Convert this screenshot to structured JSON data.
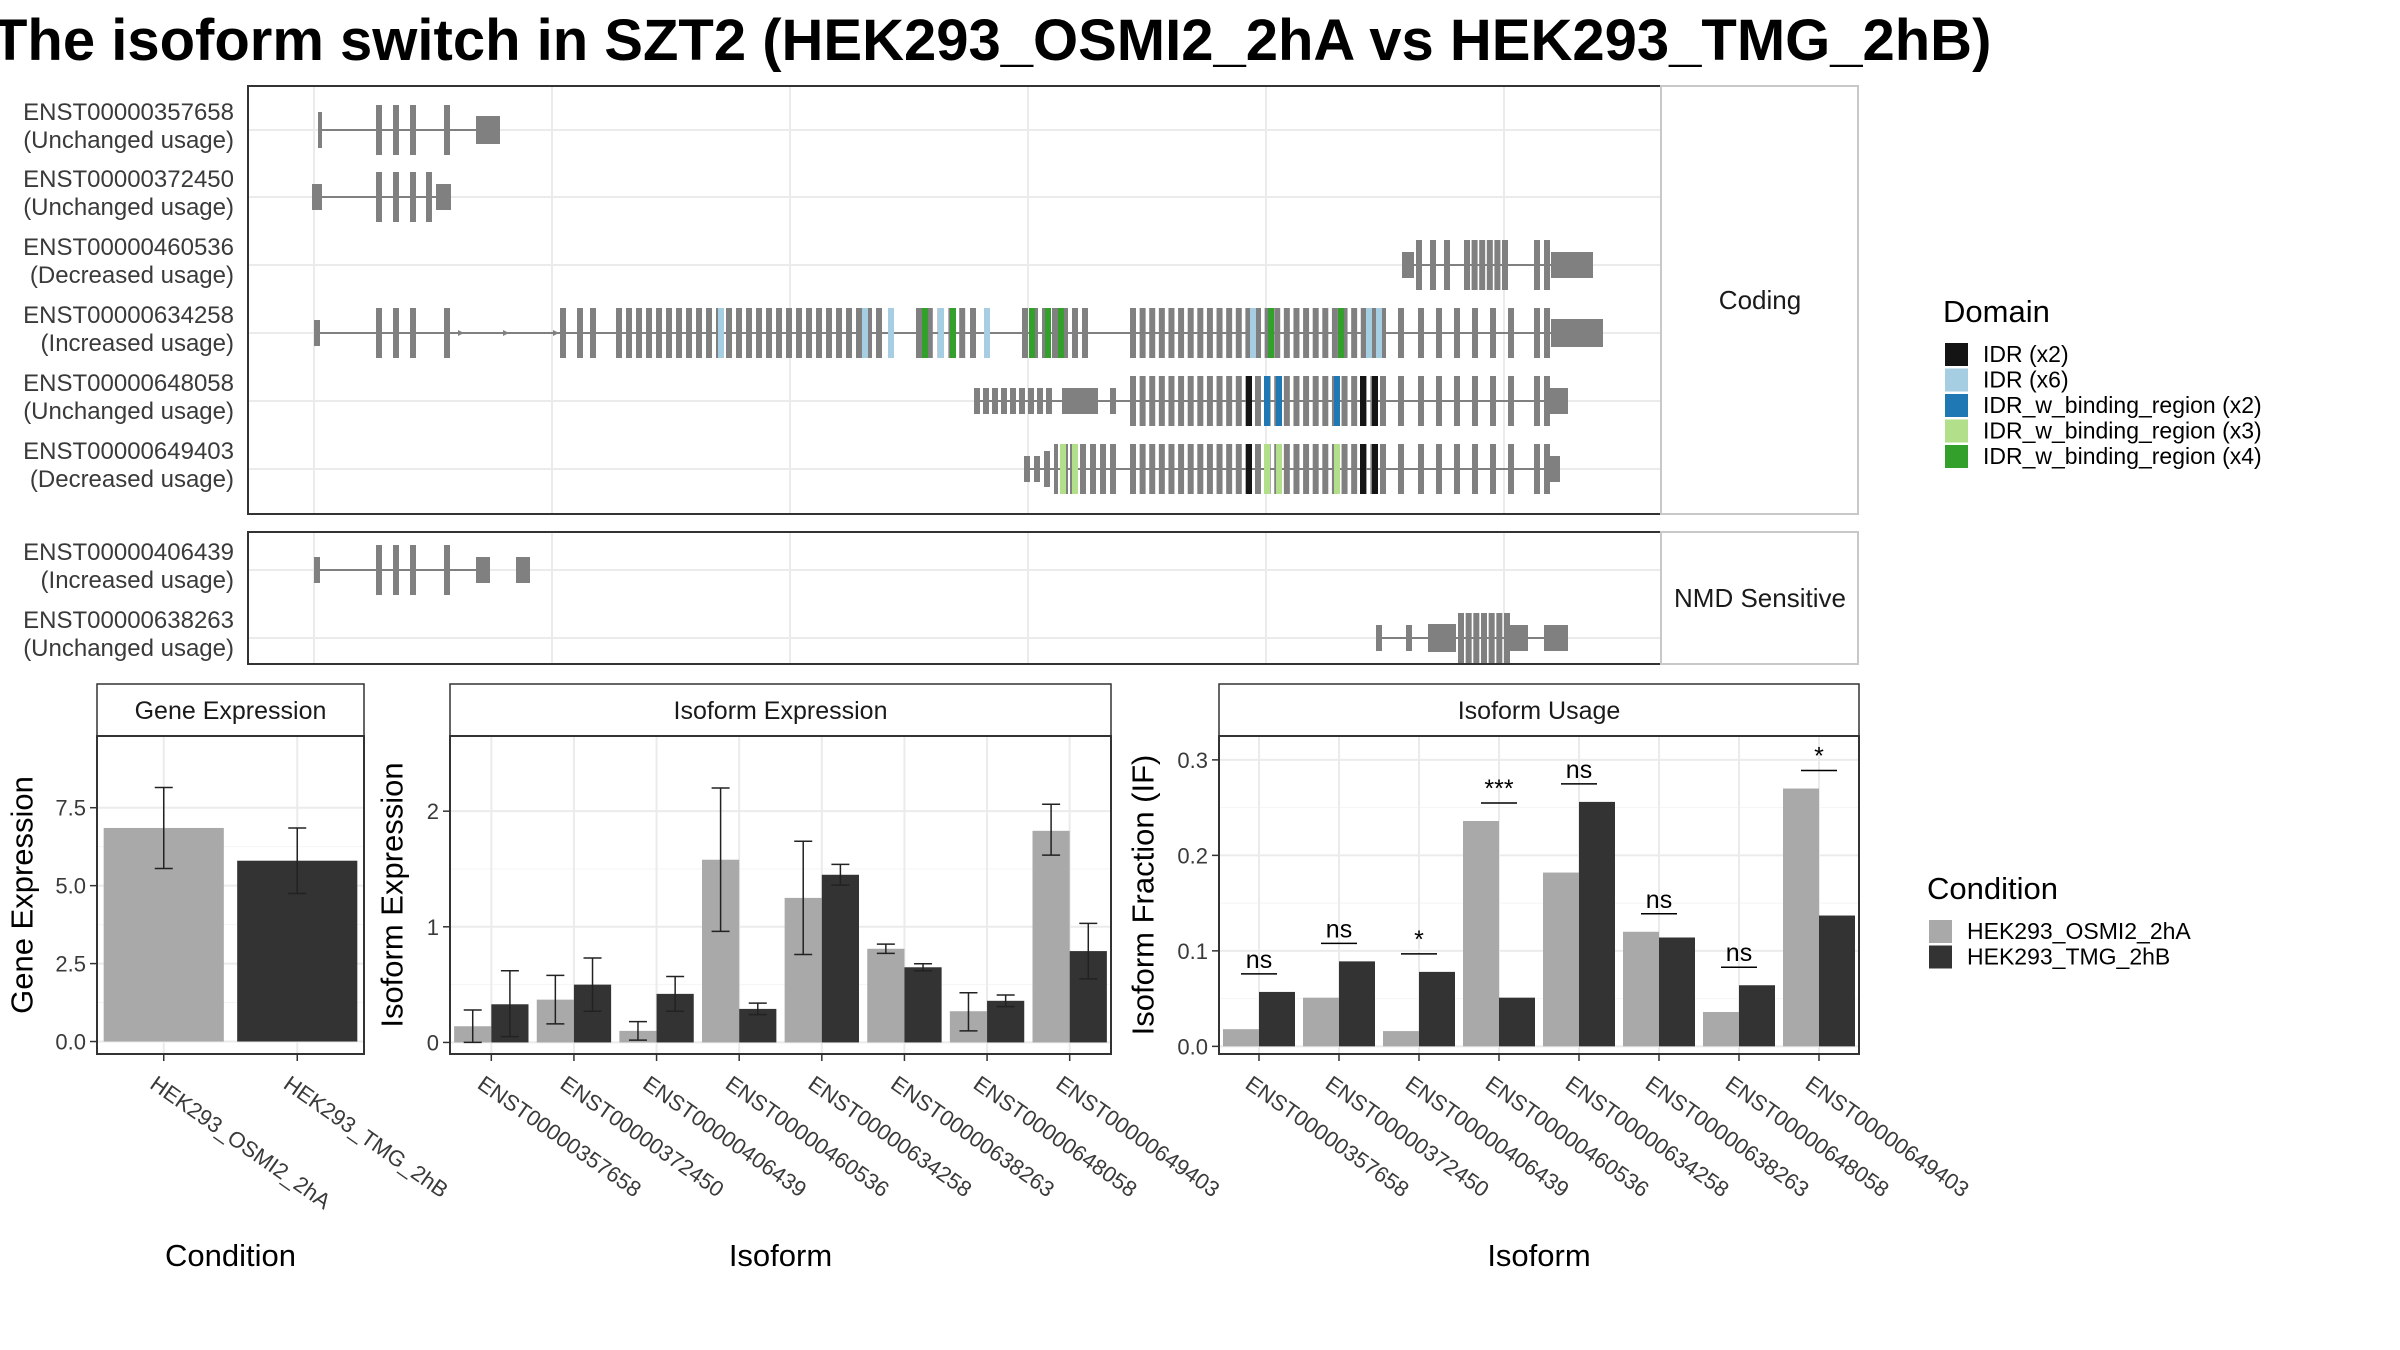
{
  "title": "The isoform switch in SZT2 (HEK293_OSMI2_2hA vs HEK293_TMG_2hB)",
  "colors": {
    "condition_a": "#a9a9a9",
    "condition_b": "#333333",
    "exon": "#808080",
    "IDR (x2)": "#141414",
    "IDR (x6)": "#a6cee3",
    "IDR_w_binding_region (x2)": "#1f78b4",
    "IDR_w_binding_region (x3)": "#b2df8a",
    "IDR_w_binding_region (x4)": "#33a02c"
  },
  "isoform_panel": {
    "groups": [
      {
        "label": "Coding",
        "isoforms": [
          {
            "id": "ENST00000357658",
            "usage": "(Unchanged usage)",
            "model": "early_long"
          },
          {
            "id": "ENST00000372450",
            "usage": "(Unchanged usage)",
            "model": "early_short"
          },
          {
            "id": "ENST00000460536",
            "usage": "(Decreased usage)",
            "model": "tail"
          },
          {
            "id": "ENST00000634258",
            "usage": "(Increased usage)",
            "model": "full"
          },
          {
            "id": "ENST00000648058",
            "usage": "(Unchanged usage)",
            "model": "mid"
          },
          {
            "id": "ENST00000649403",
            "usage": "(Decreased usage)",
            "model": "mid_short"
          }
        ]
      },
      {
        "label": "NMD Sensitive",
        "isoforms": [
          {
            "id": "ENST00000406439",
            "usage": "(Increased usage)",
            "model": "early_nmd"
          },
          {
            "id": "ENST00000638263",
            "usage": "(Unchanged usage)",
            "model": "tail_nmd"
          }
        ]
      }
    ],
    "domain_legend": {
      "title": "Domain",
      "items": [
        "IDR (x2)",
        "IDR (x6)",
        "IDR_w_binding_region (x2)",
        "IDR_w_binding_region (x3)",
        "IDR_w_binding_region (x4)"
      ]
    }
  },
  "chart_data": [
    {
      "type": "bar",
      "panel": "Gene Expression",
      "xlabel": "Condition",
      "ylabel": "Gene Expression",
      "categories": [
        "HEK293_OSMI2_2hA",
        "HEK293_TMG_2hB"
      ],
      "values": [
        6.85,
        5.8
      ],
      "errors": [
        [
          5.55,
          8.15
        ],
        [
          4.75,
          6.85
        ]
      ],
      "ylim": [
        -0.4,
        9.8
      ],
      "yticks": [
        0.0,
        2.5,
        5.0,
        7.5
      ],
      "grid": true
    },
    {
      "type": "bar",
      "panel": "Isoform Expression",
      "xlabel": "Isoform",
      "ylabel": "Isoform Expression",
      "categories": [
        "ENST00000357658",
        "ENST00000372450",
        "ENST00000406439",
        "ENST00000460536",
        "ENST00000634258",
        "ENST00000638263",
        "ENST00000648058",
        "ENST00000649403"
      ],
      "series": [
        {
          "name": "HEK293_OSMI2_2hA",
          "values": [
            0.14,
            0.37,
            0.1,
            1.58,
            1.25,
            0.81,
            0.27,
            1.83
          ],
          "errors": [
            [
              0.0,
              0.28
            ],
            [
              0.16,
              0.58
            ],
            [
              0.02,
              0.18
            ],
            [
              0.96,
              2.2
            ],
            [
              0.76,
              1.74
            ],
            [
              0.77,
              0.85
            ],
            [
              0.1,
              0.43
            ],
            [
              1.62,
              2.06
            ]
          ]
        },
        {
          "name": "HEK293_TMG_2hB",
          "values": [
            0.33,
            0.5,
            0.42,
            0.29,
            1.45,
            0.65,
            0.36,
            0.79
          ],
          "errors": [
            [
              0.05,
              0.62
            ],
            [
              0.27,
              0.73
            ],
            [
              0.27,
              0.57
            ],
            [
              0.24,
              0.34
            ],
            [
              1.36,
              1.54
            ],
            [
              0.62,
              0.68
            ],
            [
              0.31,
              0.41
            ],
            [
              0.55,
              1.03
            ]
          ]
        }
      ],
      "ylim": [
        -0.1,
        2.65
      ],
      "yticks": [
        0,
        1,
        2
      ],
      "grid": true
    },
    {
      "type": "bar",
      "panel": "Isoform Usage",
      "xlabel": "Isoform",
      "ylabel": "Isoform Fraction (IF)",
      "categories": [
        "ENST00000357658",
        "ENST00000372450",
        "ENST00000406439",
        "ENST00000460536",
        "ENST00000634258",
        "ENST00000638263",
        "ENST00000648058",
        "ENST00000649403"
      ],
      "series": [
        {
          "name": "HEK293_OSMI2_2hA",
          "values": [
            0.018,
            0.051,
            0.016,
            0.236,
            0.182,
            0.12,
            0.036,
            0.27
          ]
        },
        {
          "name": "HEK293_TMG_2hB",
          "values": [
            0.057,
            0.089,
            0.078,
            0.051,
            0.256,
            0.114,
            0.064,
            0.137
          ]
        }
      ],
      "significance": [
        "ns",
        "ns",
        "*",
        "***",
        "ns",
        "ns",
        "ns",
        "*"
      ],
      "ylim": [
        -0.008,
        0.325
      ],
      "yticks": [
        0.0,
        0.1,
        0.2,
        0.3
      ],
      "grid": true
    }
  ],
  "condition_legend": {
    "title": "Condition",
    "items": [
      "HEK293_OSMI2_2hA",
      "HEK293_TMG_2hB"
    ]
  }
}
